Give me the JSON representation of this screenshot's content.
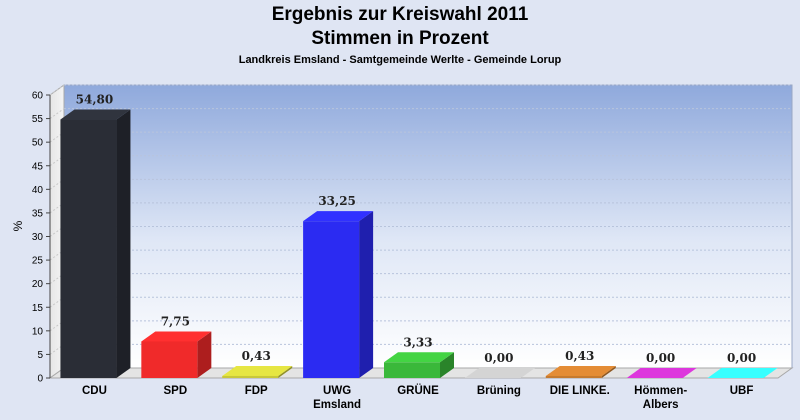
{
  "title_line1": "Ergebnis zur Kreiswahl 2011",
  "title_line2": "Stimmen in Prozent",
  "subtitle": "Landkreis Emsland - Samtgemeinde Werlte - Gemeinde Lorup",
  "chart_data": {
    "type": "bar",
    "ylabel": "%",
    "ylim": [
      0,
      60
    ],
    "yticks": [
      0,
      5,
      10,
      15,
      20,
      25,
      30,
      35,
      40,
      45,
      50,
      55,
      60
    ],
    "grid": true,
    "categories": [
      [
        "CDU"
      ],
      [
        "SPD"
      ],
      [
        "FDP"
      ],
      [
        "UWG",
        "Emsland"
      ],
      [
        "GRÜNE"
      ],
      [
        "Brüning"
      ],
      [
        "DIE LINKE."
      ],
      [
        "Hömmen-",
        "Albers"
      ],
      [
        "UBF"
      ]
    ],
    "values": [
      54.8,
      7.75,
      0.43,
      33.25,
      3.33,
      0.0,
      0.43,
      0.0,
      0.0
    ],
    "value_labels": [
      "54,80",
      "7,75",
      "0,43",
      "33,25",
      "3,33",
      "0,00",
      "0,43",
      "0,00",
      "0,00"
    ],
    "colors": [
      "#2a2d36",
      "#f02a2a",
      "#c8c83a",
      "#2b2bf2",
      "#3ab83a",
      "#b8b8b8",
      "#c67a2e",
      "#c030c0",
      "#30e8ee"
    ]
  }
}
